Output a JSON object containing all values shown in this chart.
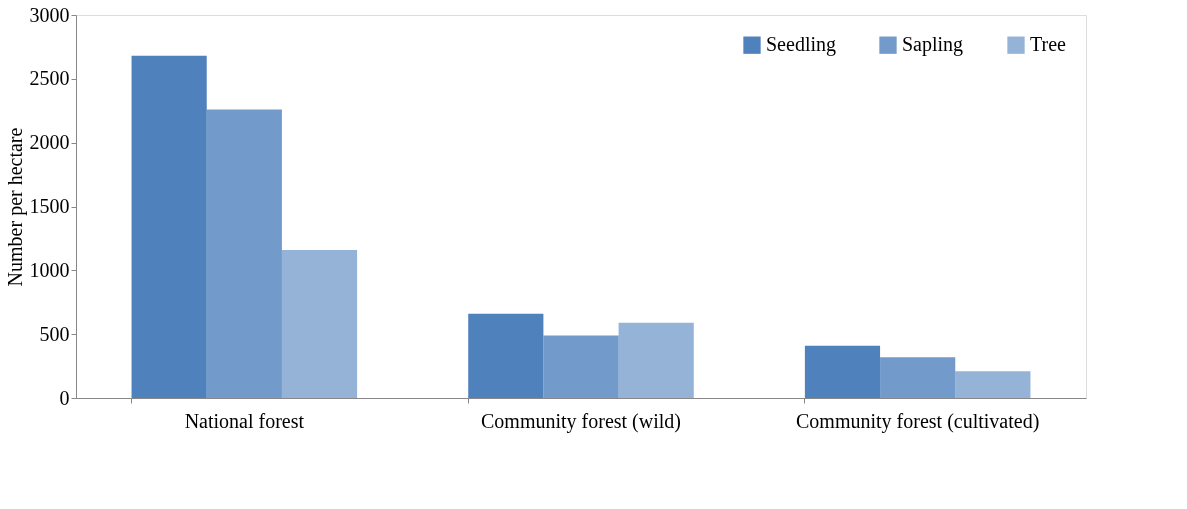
{
  "chart_data": {
    "type": "bar",
    "ylabel": "Number per hectare",
    "categories": [
      "National forest",
      "Community forest (wild)",
      "Community forest (cultivated)"
    ],
    "series": [
      {
        "name": "Seedling",
        "color": "#4f81bd",
        "values": [
          2680,
          660,
          410
        ]
      },
      {
        "name": "Sapling",
        "color": "#4f81bd",
        "values": [
          2260,
          490,
          320
        ]
      },
      {
        "name": "Tree",
        "color": "#4f81bd",
        "values": [
          1160,
          590,
          210
        ]
      }
    ],
    "ylim": [
      0,
      3000
    ],
    "yticks": [
      0,
      500,
      1000,
      1500,
      2000,
      2500,
      3000
    ],
    "grid": false,
    "legend": "top right"
  }
}
